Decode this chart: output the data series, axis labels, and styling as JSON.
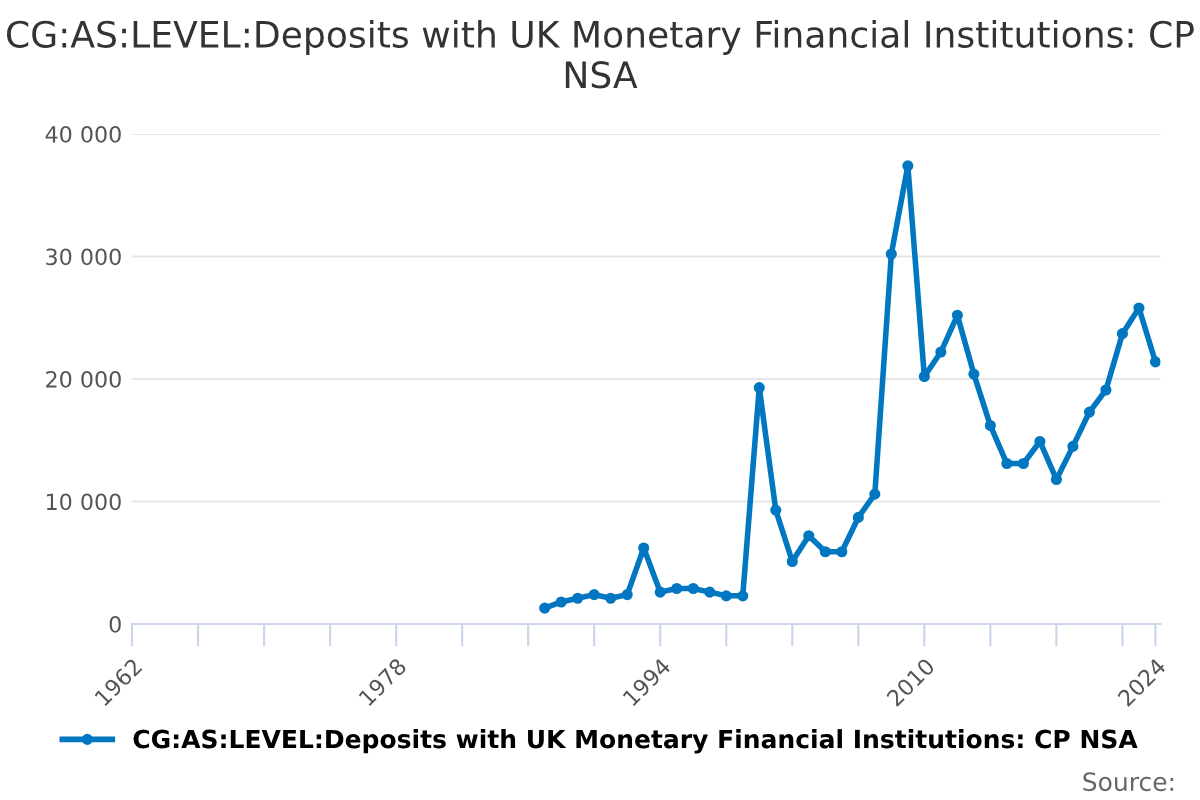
{
  "chart_data": {
    "type": "line",
    "title": "CG:AS:LEVEL:Deposits with UK Monetary Financial Institutions: CP NSA",
    "x": [
      1987,
      1988,
      1989,
      1990,
      1991,
      1992,
      1993,
      1994,
      1995,
      1996,
      1997,
      1998,
      1999,
      2000,
      2001,
      2002,
      2003,
      2004,
      2005,
      2006,
      2007,
      2008,
      2009,
      2010,
      2011,
      2012,
      2013,
      2014,
      2015,
      2016,
      2017,
      2018,
      2019,
      2020,
      2021,
      2022,
      2023,
      2024
    ],
    "series": [
      {
        "name": "CG:AS:LEVEL:Deposits with UK Monetary Financial Institutions: CP NSA",
        "color": "#0077c0",
        "values": [
          1300,
          1800,
          2100,
          2400,
          2100,
          2400,
          6200,
          2600,
          2900,
          2900,
          2600,
          2300,
          2300,
          19300,
          9300,
          5100,
          7200,
          5900,
          5900,
          8700,
          10600,
          30200,
          37400,
          20200,
          22200,
          25200,
          20400,
          16200,
          13100,
          13100,
          14900,
          11800,
          14500,
          17300,
          19100,
          23700,
          25800,
          21400
        ]
      }
    ],
    "xlim": [
      1962,
      2024.3
    ],
    "xticks": [
      1962,
      {
        "value": 1966,
        "label": null
      },
      {
        "value": 1970,
        "label": null
      },
      {
        "value": 1974,
        "label": null
      },
      1978,
      {
        "value": 1982,
        "label": null
      },
      {
        "value": 1986,
        "label": null
      },
      {
        "value": 1990,
        "label": null
      },
      1994,
      {
        "value": 1998,
        "label": null
      },
      {
        "value": 2002,
        "label": null
      },
      {
        "value": 2006,
        "label": null
      },
      2010,
      {
        "value": 2014,
        "label": null
      },
      {
        "value": 2018,
        "label": null
      },
      {
        "value": 2022,
        "label": null
      },
      2024
    ],
    "ylim": [
      0,
      40000
    ],
    "yticks": [
      0,
      {
        "value": 10000,
        "label": "10 000"
      },
      {
        "value": 20000,
        "label": "20 000"
      },
      {
        "value": 30000,
        "label": "30 000"
      },
      {
        "value": 40000,
        "label": "40 000"
      }
    ],
    "grid": "y",
    "legend": "bottom",
    "marker": "circle",
    "line_style": "solid",
    "annotations": [
      "Source:"
    ]
  }
}
